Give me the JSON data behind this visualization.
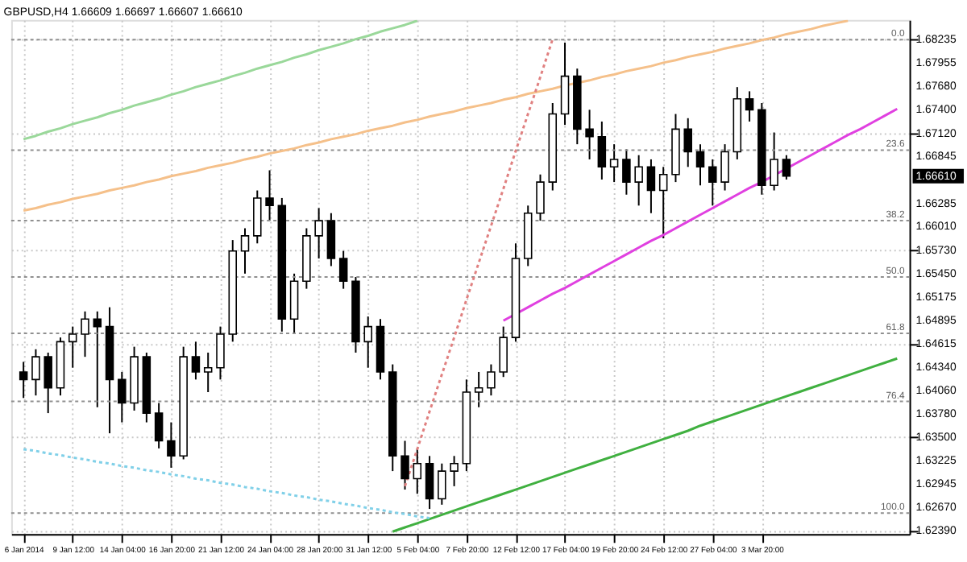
{
  "chart_data": {
    "type": "candlestick",
    "title": "GBPUSD,H4 1.66609 1.66697 1.66607 1.66610",
    "color": "#000000",
    "categories": [
      "6 Jan 2014",
      null,
      null,
      null,
      "9 Jan 12:00",
      null,
      null,
      null,
      "14 Jan 04:00",
      null,
      null,
      null,
      "16 Jan 20:00",
      null,
      null,
      null,
      "21 Jan 12:00",
      null,
      null,
      null,
      "24 Jan 04:00",
      null,
      null,
      null,
      "28 Jan 20:00",
      null,
      null,
      null,
      "31 Jan 12:00",
      null,
      null,
      null,
      "5 Feb 04:00",
      null,
      null,
      null,
      "7 Feb 20:00",
      null,
      null,
      null,
      "12 Feb 12:00",
      null,
      null,
      null,
      "17 Feb 04:00",
      null,
      null,
      null,
      "19 Feb 20:00",
      null,
      null,
      null,
      "24 Feb 12:00",
      null,
      null,
      null,
      "27 Feb 04:00",
      null,
      null,
      null,
      "3 Mar 20:00",
      null,
      null,
      null,
      null,
      null,
      null,
      null,
      null,
      null,
      null,
      null
    ],
    "ohlc": [
      [
        1.6428,
        1.644,
        1.6397,
        1.6419
      ],
      [
        1.6419,
        1.6455,
        1.64,
        1.6446
      ],
      [
        1.6446,
        1.6451,
        1.6379,
        1.6409
      ],
      [
        1.6409,
        1.6469,
        1.64,
        1.6464
      ],
      [
        1.6464,
        1.6482,
        1.6433,
        1.6473
      ],
      [
        1.6473,
        1.65,
        1.6446,
        1.6491
      ],
      [
        1.6491,
        1.65,
        1.6386,
        1.6482
      ],
      [
        1.6482,
        1.6505,
        1.6355,
        1.6419
      ],
      [
        1.6419,
        1.6428,
        1.6368,
        1.6391
      ],
      [
        1.6391,
        1.6458,
        1.6382,
        1.6446
      ],
      [
        1.6446,
        1.6451,
        1.6368,
        1.6379
      ],
      [
        1.6379,
        1.6391,
        1.6337,
        1.6346
      ],
      [
        1.6346,
        1.6368,
        1.6314,
        1.6328
      ],
      [
        1.6328,
        1.6458,
        1.6324,
        1.6446
      ],
      [
        1.6446,
        1.6464,
        1.6419,
        1.6428
      ],
      [
        1.6428,
        1.6451,
        1.6404,
        1.6433
      ],
      [
        1.6433,
        1.6482,
        1.6419,
        1.6473
      ],
      [
        1.6473,
        1.6585,
        1.6464,
        1.6572
      ],
      [
        1.6572,
        1.6599,
        1.6545,
        1.659
      ],
      [
        1.659,
        1.6644,
        1.6581,
        1.6635
      ],
      [
        1.6635,
        1.6668,
        1.6608,
        1.6626
      ],
      [
        1.6626,
        1.6635,
        1.6476,
        1.6491
      ],
      [
        1.6491,
        1.6545,
        1.6473,
        1.6536
      ],
      [
        1.6536,
        1.6599,
        1.6527,
        1.659
      ],
      [
        1.659,
        1.6623,
        1.6563,
        1.6608
      ],
      [
        1.6608,
        1.6617,
        1.6554,
        1.6563
      ],
      [
        1.6563,
        1.6572,
        1.6527,
        1.6536
      ],
      [
        1.6536,
        1.6541,
        1.6451,
        1.6464
      ],
      [
        1.6464,
        1.6494,
        1.6433,
        1.6482
      ],
      [
        1.6482,
        1.6491,
        1.6419,
        1.6428
      ],
      [
        1.6428,
        1.6437,
        1.631,
        1.6328
      ],
      [
        1.6328,
        1.6346,
        1.6288,
        1.6301
      ],
      [
        1.6301,
        1.6337,
        1.6283,
        1.6319
      ],
      [
        1.6319,
        1.6328,
        1.6265,
        1.6277
      ],
      [
        1.6277,
        1.6319,
        1.627,
        1.631
      ],
      [
        1.631,
        1.6328,
        1.6292,
        1.6319
      ],
      [
        1.6319,
        1.6419,
        1.631,
        1.6404
      ],
      [
        1.6404,
        1.6428,
        1.6386,
        1.6409
      ],
      [
        1.6409,
        1.6437,
        1.64,
        1.6428
      ],
      [
        1.6428,
        1.6482,
        1.6422,
        1.6469
      ],
      [
        1.6469,
        1.6581,
        1.6464,
        1.6563
      ],
      [
        1.6563,
        1.6626,
        1.6554,
        1.6617
      ],
      [
        1.6617,
        1.6663,
        1.6608,
        1.6654
      ],
      [
        1.6654,
        1.6748,
        1.6644,
        1.6735
      ],
      [
        1.6735,
        1.682,
        1.6722,
        1.678
      ],
      [
        1.678,
        1.6789,
        1.6699,
        1.6717
      ],
      [
        1.6717,
        1.674,
        1.6681,
        1.6708
      ],
      [
        1.6708,
        1.6726,
        1.6657,
        1.6672
      ],
      [
        1.6672,
        1.6699,
        1.6654,
        1.6681
      ],
      [
        1.6681,
        1.6693,
        1.6639,
        1.6654
      ],
      [
        1.6654,
        1.6686,
        1.6626,
        1.6672
      ],
      [
        1.6672,
        1.6681,
        1.6617,
        1.6644
      ],
      [
        1.6644,
        1.6672,
        1.6587,
        1.6663
      ],
      [
        1.6663,
        1.6735,
        1.6654,
        1.6717
      ],
      [
        1.6717,
        1.673,
        1.6672,
        1.669
      ],
      [
        1.669,
        1.6699,
        1.665,
        1.6672
      ],
      [
        1.6672,
        1.6681,
        1.6626,
        1.6654
      ],
      [
        1.6654,
        1.6699,
        1.6644,
        1.669
      ],
      [
        1.669,
        1.6767,
        1.6681,
        1.6753
      ],
      [
        1.6753,
        1.6762,
        1.6726,
        1.674
      ],
      [
        1.674,
        1.6748,
        1.6639,
        1.665
      ],
      [
        1.665,
        1.6713,
        1.6644,
        1.6681
      ],
      [
        1.6681,
        1.6686,
        1.6657,
        1.6661
      ],
      null,
      null,
      null,
      null,
      null,
      null,
      null,
      null,
      null
    ],
    "series": [
      {
        "type": "line",
        "color": "#9ad89a",
        "values": [
          1.6705,
          1.6709,
          1.6714,
          1.6718,
          1.6723,
          1.6727,
          1.6731,
          1.6736,
          1.674,
          1.6745,
          1.6749,
          1.6753,
          1.6758,
          1.6762,
          1.6767,
          1.6771,
          1.6775,
          1.678,
          1.6784,
          1.6789,
          1.6793,
          1.6797,
          1.6802,
          1.6806,
          1.6811,
          1.6815,
          1.6819,
          1.6824,
          1.6828,
          1.6833,
          1.6837,
          1.6841,
          1.6846,
          null,
          null,
          null,
          null,
          null,
          null,
          null,
          null,
          null,
          null,
          null,
          null,
          null,
          null,
          null,
          null,
          null,
          null,
          null,
          null,
          null,
          null,
          null,
          null,
          null,
          null,
          null,
          null,
          null,
          null,
          null,
          null,
          null,
          null,
          null,
          null,
          null,
          null,
          null
        ]
      },
      {
        "type": "line",
        "color": "#f5c08a",
        "values": [
          1.662,
          1.6623,
          1.6627,
          1.663,
          1.6634,
          1.6637,
          1.664,
          1.6644,
          1.6647,
          1.665,
          1.6654,
          1.6657,
          1.6661,
          1.6664,
          1.6667,
          1.6671,
          1.6674,
          1.6677,
          1.6681,
          1.6684,
          1.6688,
          1.6691,
          1.6694,
          1.6698,
          1.6701,
          1.6705,
          1.6708,
          1.6711,
          1.6715,
          1.6718,
          1.6721,
          1.6725,
          1.6728,
          1.6732,
          1.6735,
          1.6738,
          1.6742,
          1.6745,
          1.6748,
          1.6752,
          1.6755,
          1.6759,
          1.6762,
          1.6765,
          1.6769,
          1.6772,
          1.6775,
          1.6779,
          1.6782,
          1.6786,
          1.6789,
          1.6792,
          1.6796,
          1.6799,
          1.6803,
          1.6806,
          1.6809,
          1.6813,
          1.6816,
          1.6819,
          1.6823,
          1.6826,
          1.683,
          1.6833,
          1.6836,
          1.684,
          1.6843,
          1.6846,
          null,
          null,
          null,
          null
        ]
      },
      {
        "type": "line",
        "color": "#e040e0",
        "values": [
          null,
          null,
          null,
          null,
          null,
          null,
          null,
          null,
          null,
          null,
          null,
          null,
          null,
          null,
          null,
          null,
          null,
          null,
          null,
          null,
          null,
          null,
          null,
          null,
          null,
          null,
          null,
          null,
          null,
          null,
          null,
          null,
          null,
          null,
          null,
          null,
          null,
          null,
          null,
          1.6489,
          1.6497,
          1.6505,
          1.6513,
          1.6521,
          1.6528,
          1.6536,
          1.6544,
          1.6552,
          1.656,
          1.6568,
          1.6576,
          1.6584,
          1.6591,
          1.6599,
          1.6607,
          1.6615,
          1.6623,
          1.6631,
          1.6639,
          1.6647,
          1.6654,
          1.6662,
          1.667,
          1.6678,
          1.6686,
          1.6694,
          1.6702,
          1.671,
          1.6717,
          1.6725,
          1.6733,
          1.6741
        ]
      },
      {
        "type": "line",
        "color": "#40b040",
        "values": [
          null,
          null,
          null,
          null,
          null,
          null,
          null,
          null,
          null,
          null,
          null,
          null,
          null,
          null,
          null,
          null,
          null,
          null,
          null,
          null,
          null,
          null,
          null,
          null,
          null,
          null,
          null,
          null,
          null,
          null,
          1.6238,
          1.6243,
          1.6248,
          1.6253,
          1.6258,
          1.6263,
          1.6268,
          1.6273,
          1.6278,
          1.6283,
          1.6288,
          1.6293,
          1.6298,
          1.6303,
          1.6308,
          1.6313,
          1.6318,
          1.6323,
          1.6328,
          1.6333,
          1.6338,
          1.6343,
          1.6348,
          1.6353,
          1.6358,
          1.6364,
          1.6369,
          1.6374,
          1.6379,
          1.6384,
          1.6389,
          1.6394,
          1.6399,
          1.6404,
          1.6409,
          1.6414,
          1.6419,
          1.6424,
          1.6429,
          1.6434,
          1.6439,
          1.6444
        ]
      },
      {
        "type": "line",
        "color": "#80d0e8",
        "line_style": "dotted",
        "values": [
          1.6336,
          1.6334,
          1.6331,
          1.6329,
          1.6326,
          1.6324,
          1.6321,
          1.6319,
          1.6316,
          1.6314,
          1.6311,
          1.6309,
          1.6306,
          1.6304,
          1.6301,
          1.6299,
          1.6296,
          1.6294,
          1.6291,
          1.6289,
          1.6286,
          1.6284,
          1.6281,
          1.6279,
          1.6276,
          1.6274,
          1.6271,
          1.6269,
          1.6266,
          1.6264,
          1.6261,
          1.6259,
          1.6256,
          1.6254,
          null,
          null,
          null,
          null,
          null,
          null,
          null,
          null,
          null,
          null,
          null,
          null,
          null,
          null,
          null,
          null,
          null,
          null,
          null,
          null,
          null,
          null,
          null,
          null,
          null,
          null,
          null,
          null,
          null,
          null,
          null,
          null,
          null,
          null,
          null,
          null,
          null,
          null
        ]
      },
      {
        "type": "line",
        "color": "#e08080",
        "line_style": "dotted",
        "values": [
          null,
          null,
          null,
          null,
          null,
          null,
          null,
          null,
          null,
          null,
          null,
          null,
          null,
          null,
          null,
          null,
          null,
          null,
          null,
          null,
          null,
          null,
          null,
          null,
          null,
          null,
          null,
          null,
          null,
          null,
          null,
          1.6292,
          1.6336,
          1.6381,
          1.6425,
          1.6469,
          1.6514,
          1.6558,
          1.6602,
          1.6646,
          1.6691,
          1.6735,
          1.6779,
          1.6824,
          null,
          null,
          null,
          null,
          null,
          null,
          null,
          null,
          null,
          null,
          null,
          null,
          null,
          null,
          null,
          null,
          null,
          null,
          null,
          null,
          null,
          null,
          null,
          null,
          null,
          null,
          null,
          null
        ]
      }
    ],
    "ref_lines": [
      {
        "axis": "y",
        "value": 1.68235,
        "color": "#909090",
        "line_style": "dotted"
      },
      {
        "axis": "y",
        "value": 1.6692,
        "color": "#909090",
        "line_style": "dotted"
      },
      {
        "axis": "y",
        "value": 1.6608,
        "color": "#909090",
        "line_style": "dotted"
      },
      {
        "axis": "y",
        "value": 1.6541,
        "color": "#909090",
        "line_style": "dotted"
      },
      {
        "axis": "y",
        "value": 1.6474,
        "color": "#909090",
        "line_style": "dotted"
      },
      {
        "axis": "y",
        "value": 1.6393,
        "color": "#909090",
        "line_style": "dotted"
      },
      {
        "axis": "y",
        "value": 1.626,
        "color": "#909090",
        "line_style": "dotted"
      }
    ],
    "annotations": [
      {
        "text": "0.0",
        "y": 1.68235
      },
      {
        "text": "23.6",
        "y": 1.6692
      },
      {
        "text": "38.2",
        "y": 1.6608
      },
      {
        "text": "50.0",
        "y": 1.6541
      },
      {
        "text": "61.8",
        "y": 1.6474
      },
      {
        "text": "76.4",
        "y": 1.6393
      },
      {
        "text": "100.0",
        "y": 1.626
      },
      "1.66610"
    ],
    "ylim": [
      1.6235,
      1.6847
    ],
    "yticks": [
      1.68235,
      1.67955,
      {
        "value": 1.6768,
        "label": "1.67680"
      },
      {
        "value": 1.674,
        "label": "1.67400"
      },
      {
        "value": 1.6712,
        "label": "1.67120"
      },
      1.66845,
      1.66285,
      {
        "value": 1.6601,
        "label": "1.66010"
      },
      {
        "value": 1.6573,
        "label": "1.65730"
      },
      {
        "value": 1.6545,
        "label": "1.65450"
      },
      1.65175,
      1.64895,
      1.64615,
      {
        "value": 1.6434,
        "label": "1.64340"
      },
      {
        "value": 1.6406,
        "label": "1.64060"
      },
      {
        "value": 1.6378,
        "label": "1.63780"
      },
      {
        "value": 1.635,
        "label": "1.63500"
      },
      1.63225,
      1.62945,
      {
        "value": 1.6267,
        "label": "1.62670"
      },
      {
        "value": 1.6239,
        "label": "1.62390"
      }
    ],
    "grid": true
  }
}
